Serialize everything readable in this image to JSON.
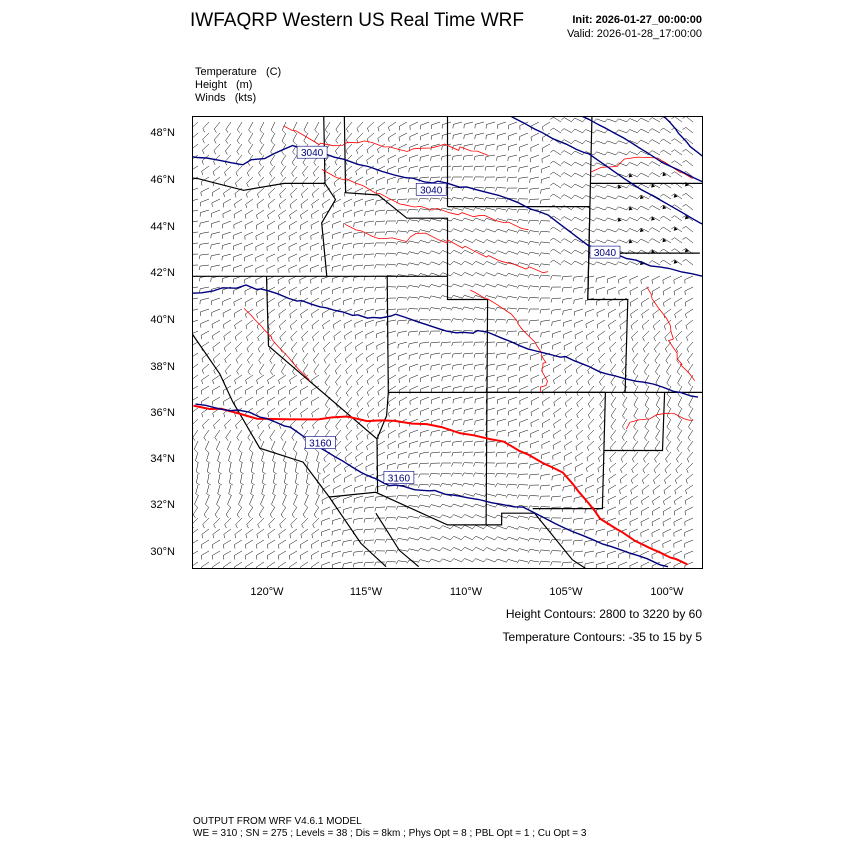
{
  "header": {
    "title": "IWFAQRP Western US Real Time WRF",
    "init": "Init: 2026-01-27_00:00:00",
    "valid": "Valid: 2026-01-28_17:00:00"
  },
  "fields": [
    {
      "name": "Temperature",
      "unit": "(C)"
    },
    {
      "name": "Height",
      "unit": "(m)"
    },
    {
      "name": "Winds",
      "unit": "(kts)"
    }
  ],
  "map": {
    "lat_range": [
      29.4,
      48.9
    ],
    "lon_range": [
      -123.8,
      -98.2
    ],
    "lat_ticks": [
      "48°N",
      "46°N",
      "44°N",
      "42°N",
      "40°N",
      "38°N",
      "36°N",
      "34°N",
      "32°N",
      "30°N"
    ],
    "lon_ticks": [
      "120°W",
      "115°W",
      "110°W",
      "105°W",
      "100°W"
    ],
    "height_labels": [
      "3040",
      "3040",
      "3040",
      "3160",
      "3160"
    ],
    "colors": {
      "height": "#00007f",
      "temperature": "#ff0000",
      "boundary": "#000000",
      "barb": "#000000"
    }
  },
  "captions": {
    "height": "Height Contours: 2800 to 3220 by 60",
    "temperature": "Temperature Contours: -35 to 15 by 5"
  },
  "footer": {
    "line1": "OUTPUT FROM WRF V4.6.1 MODEL",
    "line2": "WE = 310 ; SN = 275 ; Levels = 38 ; Dis = 8km ; Phys Opt = 8 ; PBL Opt = 1 ; Cu Opt = 3"
  }
}
